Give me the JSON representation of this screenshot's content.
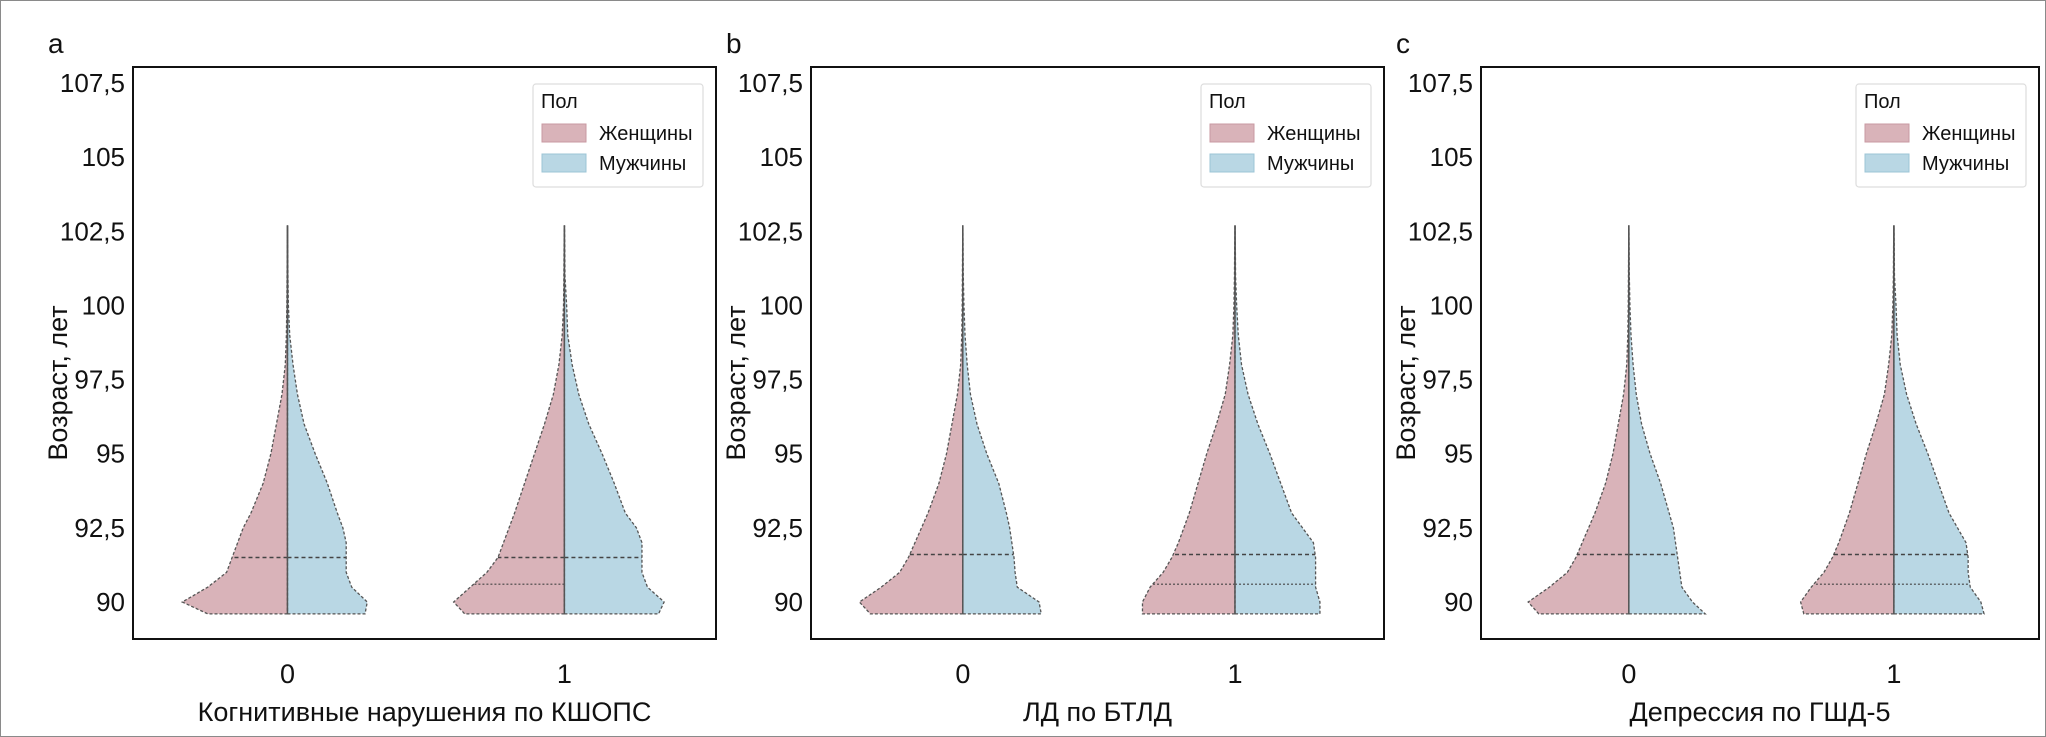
{
  "chart_data": [
    {
      "type": "violin",
      "panel_letter": "a",
      "xlabel": "Когнитивные нарушения по КШОПС",
      "ylabel": "Возраст, лет",
      "ylim": [
        88.5,
        107.7
      ],
      "yticks": [
        90,
        92.5,
        95,
        97.5,
        100,
        102.5,
        105,
        107.5
      ],
      "ytick_labels": [
        "90",
        "92,5",
        "95",
        "97,5",
        "100",
        "102,5",
        "105",
        "107,5"
      ],
      "categories": [
        "0",
        "1"
      ],
      "legend": {
        "title": "Пол",
        "entries": [
          "Женщины",
          "Мужчины"
        ],
        "placement": "top-right"
      },
      "ages": [
        89.6,
        90,
        90.5,
        91,
        91.5,
        92,
        92.5,
        93,
        94,
        95,
        96,
        97,
        98,
        99,
        100,
        101,
        102,
        102.7
      ],
      "violins": [
        {
          "category": "0",
          "sex": "Женщины",
          "density": [
            0.72,
            0.95,
            0.72,
            0.55,
            0.5,
            0.45,
            0.4,
            0.33,
            0.22,
            0.15,
            0.1,
            0.05,
            0.02,
            0.01,
            0.006,
            0.004,
            0.002,
            0
          ],
          "median": 91.5,
          "quartiles": []
        },
        {
          "category": "0",
          "sex": "Мужчины",
          "density": [
            0.7,
            0.72,
            0.58,
            0.53,
            0.53,
            0.53,
            0.5,
            0.45,
            0.36,
            0.25,
            0.15,
            0.09,
            0.05,
            0.02,
            0.008,
            0.004,
            0.002,
            0
          ],
          "median": 91.5,
          "quartiles": []
        },
        {
          "category": "1",
          "sex": "Женщины",
          "density": [
            0.9,
            1.0,
            0.85,
            0.7,
            0.6,
            0.55,
            0.5,
            0.45,
            0.36,
            0.27,
            0.18,
            0.1,
            0.05,
            0.02,
            0.008,
            0.005,
            0.003,
            0
          ],
          "median": 91.5,
          "quartiles": [
            90.6
          ]
        },
        {
          "category": "1",
          "sex": "Мужчины",
          "density": [
            0.85,
            0.9,
            0.75,
            0.7,
            0.7,
            0.7,
            0.65,
            0.55,
            0.45,
            0.34,
            0.22,
            0.13,
            0.07,
            0.03,
            0.02,
            0.005,
            0.003,
            0
          ],
          "median": 91.5,
          "quartiles": []
        }
      ]
    },
    {
      "type": "violin",
      "panel_letter": "b",
      "xlabel": "ЛД по БТЛД",
      "ylabel": "Возраст, лет",
      "ylim": [
        88.5,
        107.7
      ],
      "yticks": [
        90,
        92.5,
        95,
        97.5,
        100,
        102.5,
        105,
        107.5
      ],
      "ytick_labels": [
        "90",
        "92,5",
        "95",
        "97,5",
        "100",
        "102,5",
        "105",
        "107,5"
      ],
      "categories": [
        "0",
        "1"
      ],
      "legend": {
        "title": "Пол",
        "entries": [
          "Женщины",
          "Мужчины"
        ],
        "placement": "top-right"
      },
      "ages": [
        89.6,
        90,
        90.5,
        91,
        91.5,
        92,
        92.5,
        93,
        94,
        95,
        96,
        97,
        98,
        99,
        100,
        101,
        102,
        102.7
      ],
      "violins": [
        {
          "category": "0",
          "sex": "Женщины",
          "density": [
            0.85,
            0.95,
            0.75,
            0.58,
            0.5,
            0.44,
            0.38,
            0.32,
            0.22,
            0.15,
            0.1,
            0.05,
            0.02,
            0.01,
            0.006,
            0.004,
            0.002,
            0
          ],
          "median": 91.6,
          "quartiles": []
        },
        {
          "category": "0",
          "sex": "Мужчины",
          "density": [
            0.72,
            0.7,
            0.5,
            0.48,
            0.47,
            0.45,
            0.43,
            0.4,
            0.33,
            0.22,
            0.13,
            0.07,
            0.04,
            0.02,
            0.01,
            0.004,
            0.002,
            0
          ],
          "median": 91.6,
          "quartiles": []
        },
        {
          "category": "1",
          "sex": "Женщины",
          "density": [
            0.85,
            0.85,
            0.78,
            0.66,
            0.58,
            0.52,
            0.47,
            0.42,
            0.34,
            0.26,
            0.17,
            0.09,
            0.05,
            0.02,
            0.01,
            0.005,
            0.003,
            0
          ],
          "median": 91.6,
          "quartiles": [
            90.6
          ]
        },
        {
          "category": "1",
          "sex": "Мужчины",
          "density": [
            0.78,
            0.78,
            0.74,
            0.74,
            0.74,
            0.72,
            0.62,
            0.52,
            0.42,
            0.32,
            0.21,
            0.12,
            0.06,
            0.03,
            0.015,
            0.005,
            0.003,
            0
          ],
          "median": 91.6,
          "quartiles": [
            90.6
          ]
        }
      ]
    },
    {
      "type": "violin",
      "panel_letter": "c",
      "xlabel": "Депрессия по ГШД-5",
      "ylabel": "Возраст, лет",
      "ylim": [
        88.5,
        107.7
      ],
      "yticks": [
        90,
        92.5,
        95,
        97.5,
        100,
        102.5,
        105,
        107.5
      ],
      "ytick_labels": [
        "90",
        "92,5",
        "95",
        "97,5",
        "100",
        "102,5",
        "105",
        "107,5"
      ],
      "categories": [
        "0",
        "1"
      ],
      "legend": {
        "title": "Пол",
        "entries": [
          "Женщины",
          "Мужчины"
        ],
        "placement": "top-right"
      },
      "ages": [
        89.6,
        90,
        90.5,
        91,
        91.5,
        92,
        92.5,
        93,
        94,
        95,
        96,
        97,
        98,
        99,
        100,
        101,
        102,
        102.7
      ],
      "violins": [
        {
          "category": "0",
          "sex": "Женщины",
          "density": [
            0.85,
            0.95,
            0.75,
            0.58,
            0.5,
            0.44,
            0.38,
            0.32,
            0.22,
            0.15,
            0.1,
            0.05,
            0.02,
            0.01,
            0.006,
            0.004,
            0.002,
            0
          ],
          "median": 91.6,
          "quartiles": []
        },
        {
          "category": "0",
          "sex": "Мужчины",
          "density": [
            0.72,
            0.6,
            0.5,
            0.48,
            0.46,
            0.44,
            0.42,
            0.38,
            0.3,
            0.2,
            0.12,
            0.07,
            0.04,
            0.02,
            0.01,
            0.004,
            0.002,
            0
          ],
          "median": 91.6,
          "quartiles": []
        },
        {
          "category": "1",
          "sex": "Женщины",
          "density": [
            0.85,
            0.88,
            0.78,
            0.66,
            0.58,
            0.52,
            0.47,
            0.42,
            0.34,
            0.26,
            0.17,
            0.09,
            0.05,
            0.02,
            0.01,
            0.005,
            0.003,
            0
          ],
          "median": 91.6,
          "quartiles": [
            90.6
          ]
        },
        {
          "category": "1",
          "sex": "Мужчины",
          "density": [
            0.85,
            0.82,
            0.72,
            0.7,
            0.7,
            0.68,
            0.6,
            0.52,
            0.42,
            0.32,
            0.21,
            0.12,
            0.06,
            0.03,
            0.02,
            0.005,
            0.003,
            0
          ],
          "median": 91.6,
          "quartiles": [
            90.6
          ]
        }
      ]
    }
  ],
  "colors": {
    "female": "#d9b3b9",
    "male": "#b9d7e4",
    "outline": "#555555",
    "axis": "#111111"
  }
}
